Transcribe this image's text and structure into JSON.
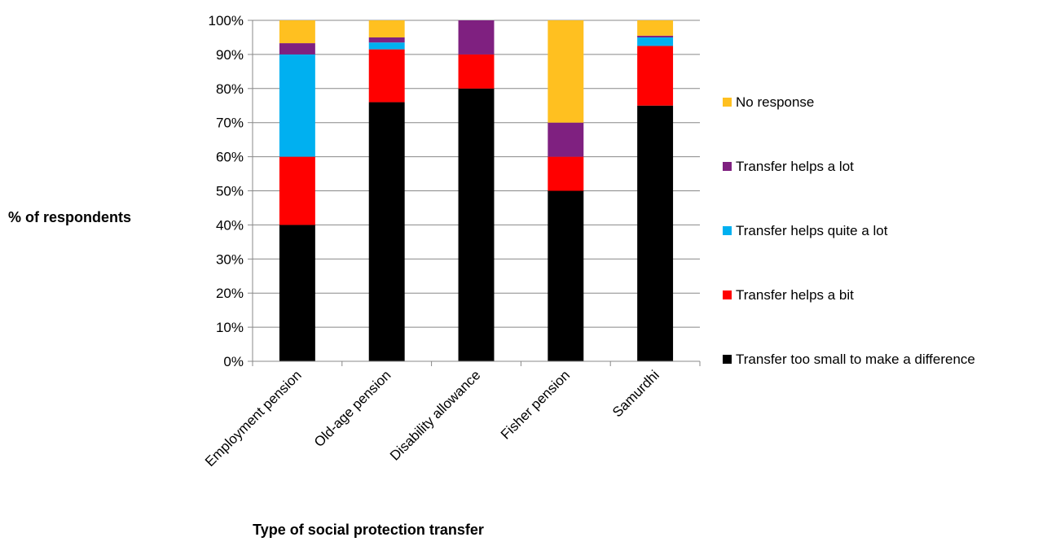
{
  "chart_data": {
    "type": "bar",
    "stacked": true,
    "title": "",
    "xlabel": "Type of social protection transfer",
    "ylabel": "% of respondents",
    "ylim": [
      0,
      100
    ],
    "y_ticks": [
      "0%",
      "10%",
      "20%",
      "30%",
      "40%",
      "50%",
      "60%",
      "70%",
      "80%",
      "90%",
      "100%"
    ],
    "grid": true,
    "legend_position": "right",
    "categories": [
      "Employment pension",
      "Old-age pension",
      "Disability allowance",
      "Fisher pension",
      "Samurdhi"
    ],
    "series": [
      {
        "name": "Transfer too small to make a difference",
        "color": "#000000",
        "values": [
          40,
          76,
          80,
          50,
          75
        ]
      },
      {
        "name": "Transfer helps a bit",
        "color": "#ff0000",
        "values": [
          20,
          15.5,
          10,
          10,
          17.5
        ]
      },
      {
        "name": "Transfer helps quite a lot",
        "color": "#00b0f0",
        "values": [
          30,
          2,
          0,
          0,
          2.5
        ]
      },
      {
        "name": "Transfer helps a lot",
        "color": "#7f2080",
        "values": [
          3.3,
          1.5,
          10,
          10,
          0.5
        ]
      },
      {
        "name": "No response",
        "color": "#ffc020",
        "values": [
          6.7,
          5,
          0,
          30,
          4.5
        ]
      }
    ]
  }
}
